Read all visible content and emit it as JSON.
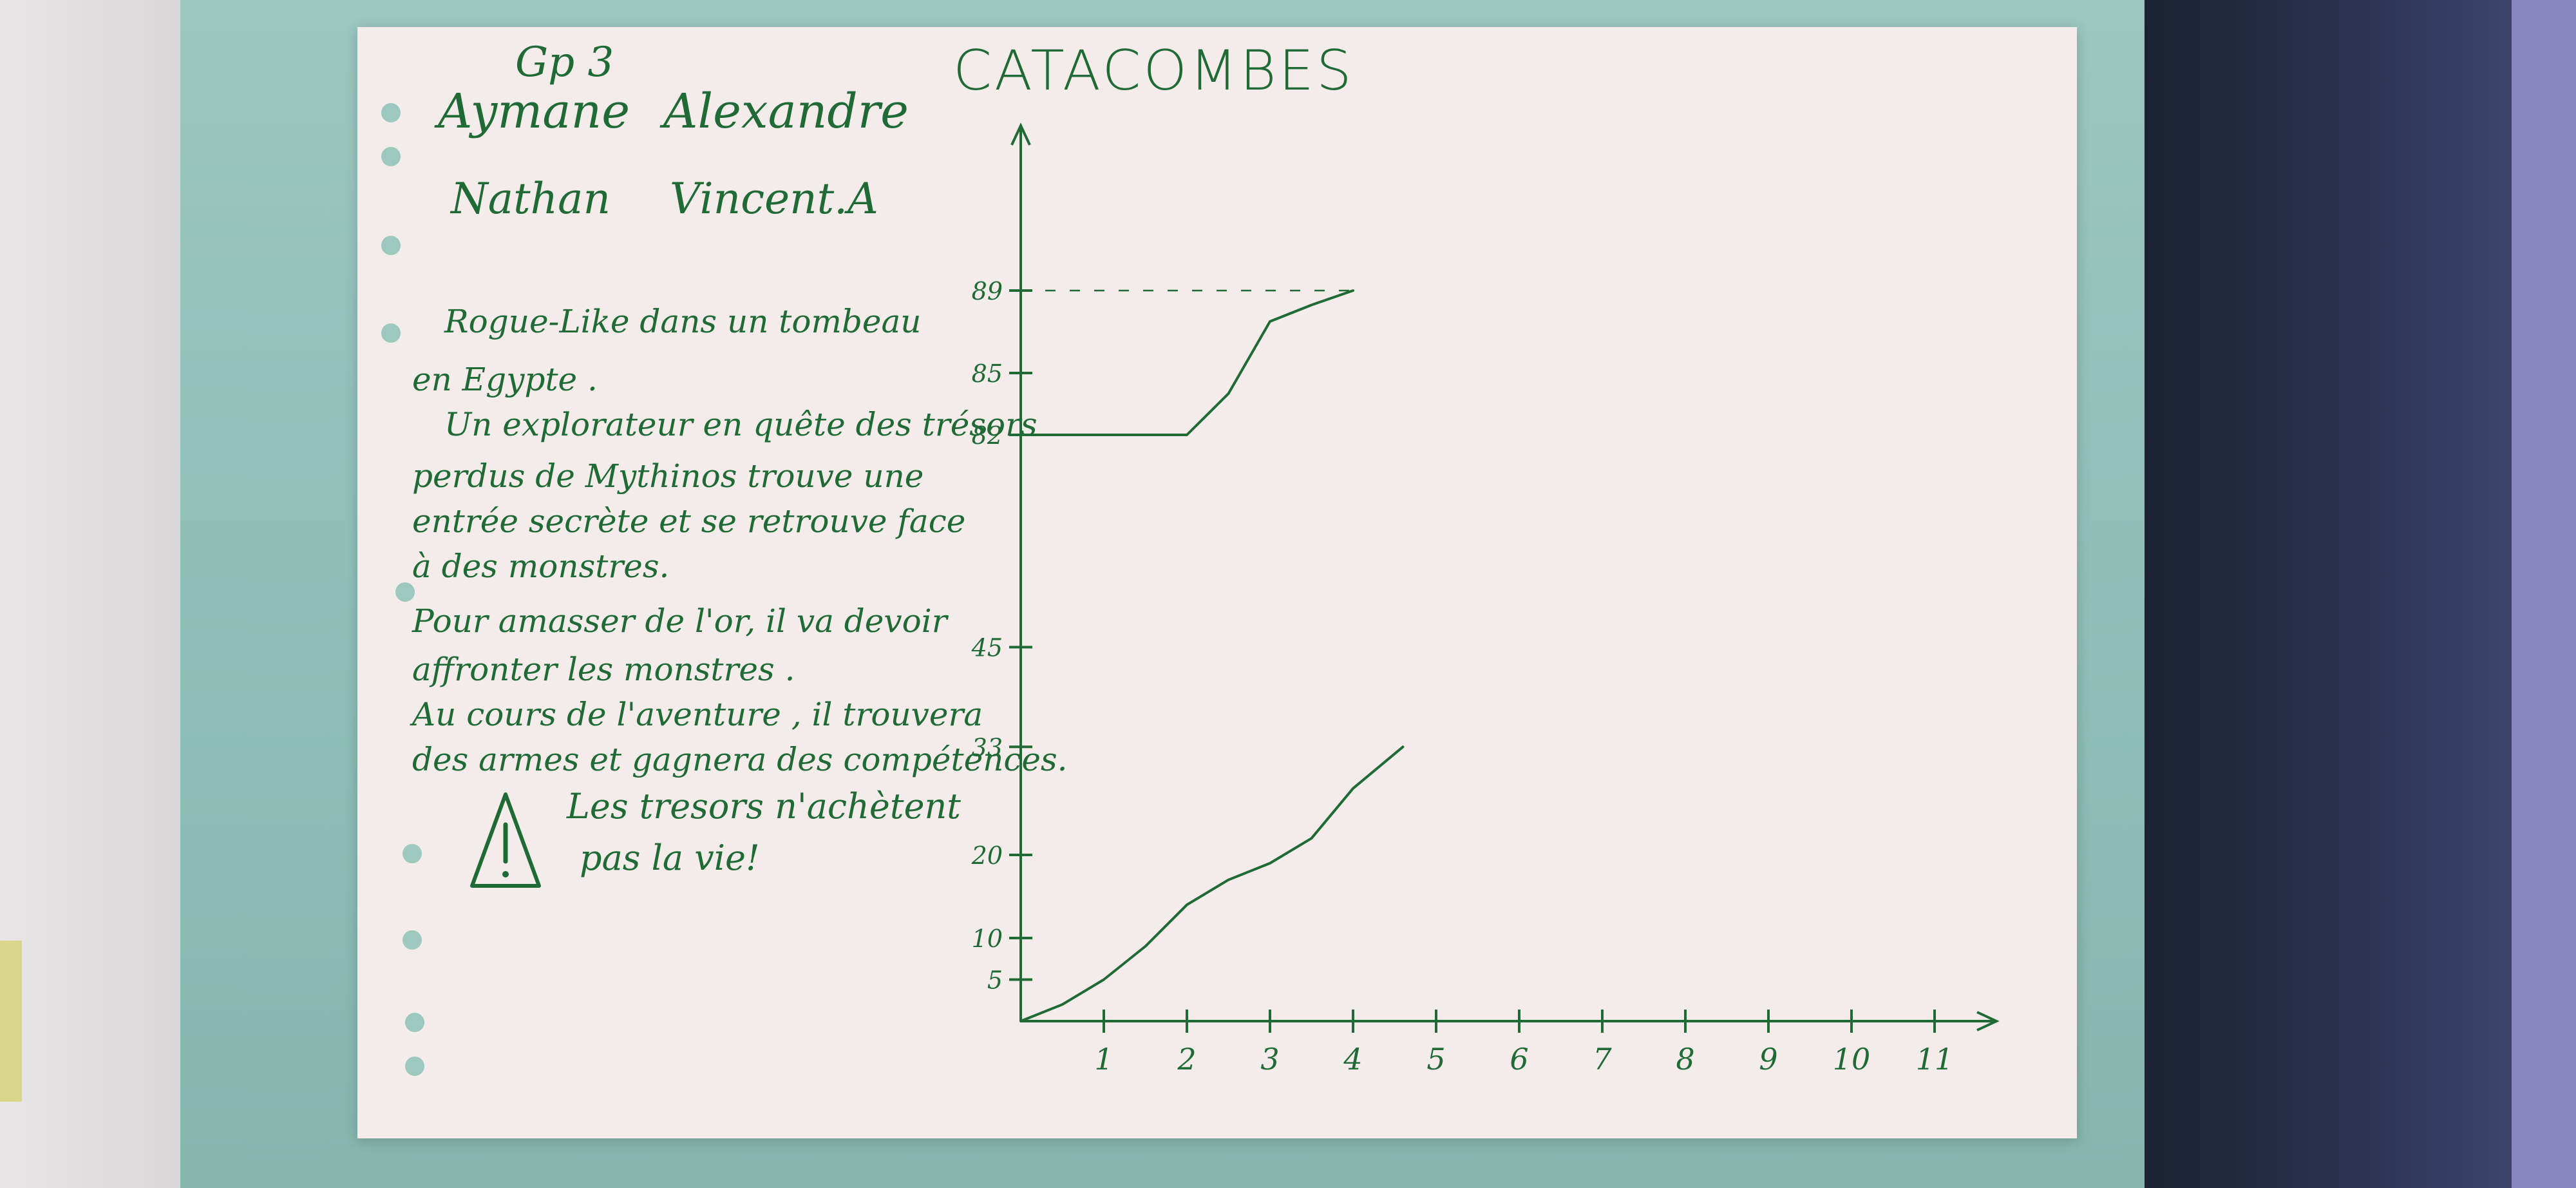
{
  "scene": {
    "heading_group": "Gp 3",
    "names": [
      "Aymane",
      "Alexandre",
      "Nathan",
      "Vincent.A"
    ],
    "title": "CATACOMBES",
    "description_lines": [
      "Rogue-Like dans un tombeau",
      "en Egypte .",
      "Un explorateur en quête des trésors",
      "perdus de Mythinos trouve une",
      "entrée secrète et se retrouve face",
      "à des monstres.",
      "Pour amasser de l'or, il va devoir",
      "affronter les monstres .",
      "Au cours de l'aventure , il trouvera",
      "des armes et gagnera des compétences."
    ],
    "warning_icon": "warning-triangle-icon",
    "warning_lines": [
      "Les tresors n'achètent",
      "pas la vie!"
    ]
  },
  "colors": {
    "ink": "#1f6a35",
    "paper": "#f3ecea",
    "board": "#8dbdb6",
    "panel": "#2a3350"
  },
  "chart_data": {
    "type": "line",
    "title": "CATACOMBES",
    "x_ticks": [
      1,
      2,
      3,
      4,
      5,
      6,
      7,
      8,
      9,
      10,
      11
    ],
    "y_ticks_lower": [
      5,
      10,
      20,
      33,
      45
    ],
    "y_ticks_upper": [
      82,
      85,
      89
    ],
    "dashed_reference_y": 89,
    "series": [
      {
        "values_x": [
          0,
          0.5,
          1,
          1.5,
          2,
          2.5,
          3,
          3.5,
          4,
          4.6
        ],
        "values_y": [
          0,
          2,
          5,
          9,
          14,
          17,
          19,
          22,
          28,
          33
        ]
      },
      {
        "values_x": [
          0,
          0.5,
          1,
          1.5,
          2,
          2.5,
          3,
          3.5,
          4
        ],
        "values_y": [
          82,
          82,
          82,
          82,
          82,
          84,
          87.5,
          88.3,
          89
        ]
      }
    ]
  }
}
